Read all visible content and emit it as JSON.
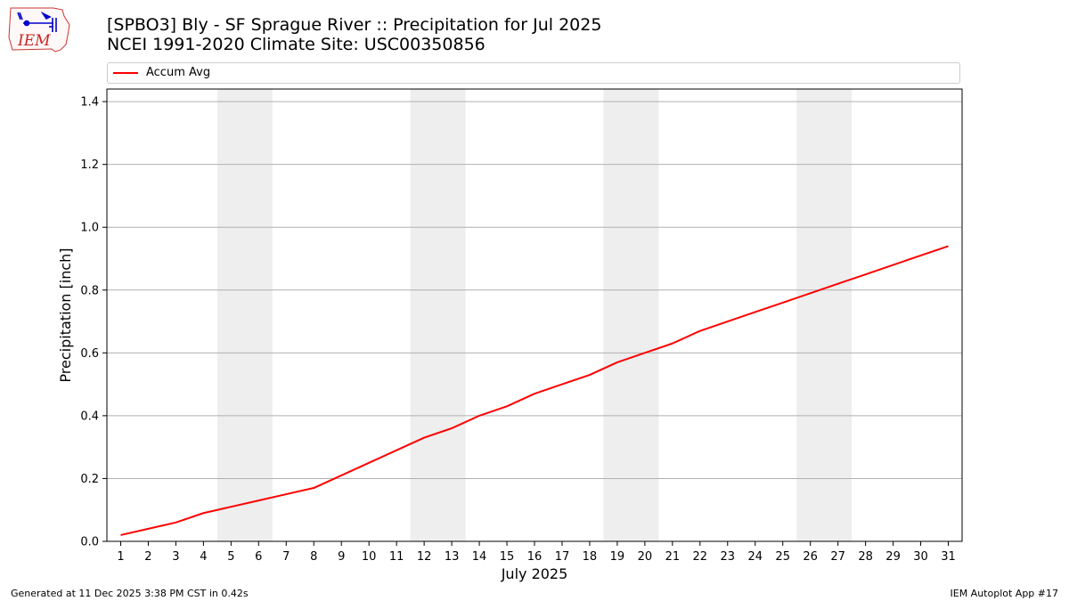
{
  "header": {
    "title_line1": "[SPBO3] Bly - SF Sprague River :: Precipitation for Jul 2025",
    "title_line2": "NCEI 1991-2020 Climate Site: USC00350856"
  },
  "logo": {
    "text": "IEM",
    "icon": "iem-iowa-logo-icon"
  },
  "footer": {
    "left": "Generated at 11 Dec 2025 3:38 PM CST in 0.42s",
    "right": "IEM Autoplot App #17"
  },
  "chart_data": {
    "type": "line",
    "xlabel": "July 2025",
    "ylabel": "Precipitation [inch]",
    "x": [
      1,
      2,
      3,
      4,
      5,
      6,
      7,
      8,
      9,
      10,
      11,
      12,
      13,
      14,
      15,
      16,
      17,
      18,
      19,
      20,
      21,
      22,
      23,
      24,
      25,
      26,
      27,
      28,
      29,
      30,
      31
    ],
    "xlim": [
      0.5,
      31.5
    ],
    "ylim": [
      0,
      1.44
    ],
    "yticks": [
      "0.0",
      "0.2",
      "0.4",
      "0.6",
      "0.8",
      "1.0",
      "1.2",
      "1.4"
    ],
    "ytick_values": [
      0,
      0.2,
      0.4,
      0.6,
      0.8,
      1.0,
      1.2,
      1.4
    ],
    "grid": "horizontal",
    "legend_placement": "top",
    "weekend_shading": [
      [
        5,
        6
      ],
      [
        12,
        13
      ],
      [
        19,
        20
      ],
      [
        26,
        27
      ]
    ],
    "series": [
      {
        "name": "Accum Avg",
        "color": "#ff0000",
        "values": [
          0.02,
          0.04,
          0.06,
          0.09,
          0.11,
          0.13,
          0.15,
          0.17,
          0.21,
          0.25,
          0.29,
          0.33,
          0.36,
          0.4,
          0.43,
          0.47,
          0.5,
          0.53,
          0.57,
          0.6,
          0.63,
          0.67,
          0.7,
          0.73,
          0.76,
          0.79,
          0.82,
          0.85,
          0.88,
          0.91,
          0.94
        ]
      }
    ]
  }
}
